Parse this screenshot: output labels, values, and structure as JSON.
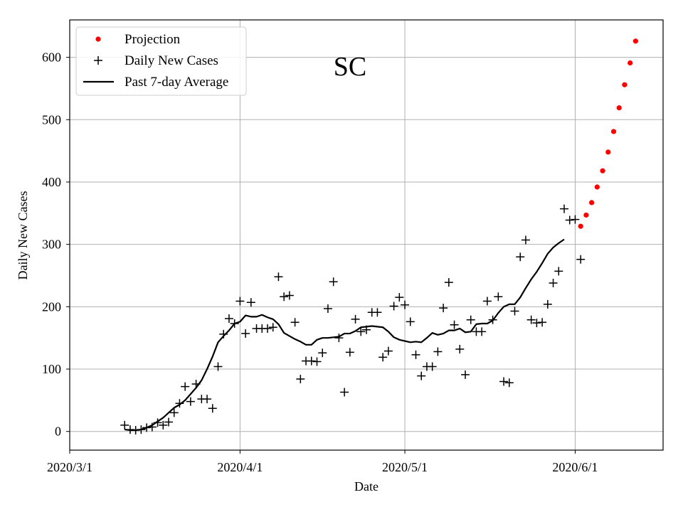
{
  "chart_data": {
    "type": "scatter",
    "title": "SC",
    "xlabel": "Date",
    "ylabel": "Daily New Cases",
    "x_axis": {
      "unit": "days since 2020-03-01",
      "range": [
        0,
        108
      ],
      "ticks": [
        {
          "day": 0,
          "label": "2020/3/1"
        },
        {
          "day": 31,
          "label": "2020/4/1"
        },
        {
          "day": 61,
          "label": "2020/5/1"
        },
        {
          "day": 92,
          "label": "2020/6/1"
        }
      ]
    },
    "y_axis": {
      "range": [
        -30,
        660
      ],
      "ticks": [
        0,
        100,
        200,
        300,
        400,
        500,
        600
      ]
    },
    "grid": true,
    "legend": {
      "position": "top-left",
      "entries": [
        {
          "label": "Projection",
          "marker": "dot",
          "color": "#ff0000"
        },
        {
          "label": "Daily New Cases",
          "marker": "plus",
          "color": "#000000"
        },
        {
          "label": "Past 7-day Average",
          "marker": "line",
          "color": "#000000"
        }
      ]
    },
    "series": [
      {
        "name": "Daily New Cases",
        "color": "#000000",
        "points": [
          [
            10,
            10
          ],
          [
            11,
            3
          ],
          [
            12,
            2
          ],
          [
            13,
            3
          ],
          [
            14,
            6
          ],
          [
            15,
            7
          ],
          [
            16,
            14
          ],
          [
            17,
            10
          ],
          [
            18,
            15
          ],
          [
            19,
            30
          ],
          [
            20,
            45
          ],
          [
            21,
            72
          ],
          [
            22,
            48
          ],
          [
            23,
            76
          ],
          [
            24,
            52
          ],
          [
            25,
            52
          ],
          [
            26,
            37
          ],
          [
            27,
            104
          ],
          [
            28,
            156
          ],
          [
            29,
            181
          ],
          [
            30,
            173
          ],
          [
            31,
            209
          ],
          [
            32,
            157
          ],
          [
            33,
            207
          ],
          [
            34,
            165
          ],
          [
            35,
            165
          ],
          [
            36,
            165
          ],
          [
            37,
            167
          ],
          [
            38,
            248
          ],
          [
            39,
            216
          ],
          [
            40,
            218
          ],
          [
            41,
            175
          ],
          [
            42,
            84
          ],
          [
            43,
            113
          ],
          [
            44,
            113
          ],
          [
            45,
            112
          ],
          [
            46,
            126
          ],
          [
            47,
            197
          ],
          [
            48,
            240
          ],
          [
            49,
            150
          ],
          [
            50,
            63
          ],
          [
            51,
            127
          ],
          [
            52,
            180
          ],
          [
            53,
            160
          ],
          [
            54,
            163
          ],
          [
            55,
            191
          ],
          [
            56,
            191
          ],
          [
            57,
            119
          ],
          [
            58,
            129
          ],
          [
            59,
            201
          ],
          [
            60,
            215
          ],
          [
            61,
            203
          ],
          [
            62,
            176
          ],
          [
            63,
            123
          ],
          [
            64,
            89
          ],
          [
            65,
            104
          ],
          [
            66,
            104
          ],
          [
            67,
            128
          ],
          [
            68,
            198
          ],
          [
            69,
            239
          ],
          [
            70,
            171
          ],
          [
            71,
            132
          ],
          [
            72,
            91
          ],
          [
            73,
            179
          ],
          [
            74,
            160
          ],
          [
            75,
            160
          ],
          [
            76,
            209
          ],
          [
            77,
            179
          ],
          [
            78,
            216
          ],
          [
            79,
            80
          ],
          [
            80,
            78
          ],
          [
            81,
            193
          ],
          [
            82,
            280
          ],
          [
            83,
            307
          ],
          [
            84,
            179
          ],
          [
            85,
            174
          ],
          [
            86,
            175
          ],
          [
            87,
            204
          ],
          [
            88,
            238
          ],
          [
            89,
            257
          ],
          [
            90,
            357
          ],
          [
            91,
            339
          ],
          [
            92,
            340
          ],
          [
            93,
            276
          ]
        ]
      },
      {
        "name": "Past 7-day Average",
        "color": "#000000",
        "points": [
          [
            10,
            3
          ],
          [
            11,
            2
          ],
          [
            12,
            2
          ],
          [
            13,
            3
          ],
          [
            14,
            6
          ],
          [
            15,
            10
          ],
          [
            16,
            16
          ],
          [
            17,
            22
          ],
          [
            18,
            30
          ],
          [
            19,
            38
          ],
          [
            20,
            43
          ],
          [
            21,
            50
          ],
          [
            22,
            60
          ],
          [
            23,
            70
          ],
          [
            24,
            82
          ],
          [
            25,
            100
          ],
          [
            26,
            120
          ],
          [
            27,
            143
          ],
          [
            28,
            153
          ],
          [
            29,
            162
          ],
          [
            30,
            173
          ],
          [
            31,
            176
          ],
          [
            32,
            186
          ],
          [
            33,
            184
          ],
          [
            34,
            184
          ],
          [
            35,
            187
          ],
          [
            36,
            183
          ],
          [
            37,
            180
          ],
          [
            38,
            172
          ],
          [
            39,
            158
          ],
          [
            40,
            153
          ],
          [
            41,
            148
          ],
          [
            42,
            144
          ],
          [
            43,
            139
          ],
          [
            44,
            139
          ],
          [
            45,
            147
          ],
          [
            46,
            150
          ],
          [
            47,
            150
          ],
          [
            48,
            151
          ],
          [
            49,
            152
          ],
          [
            50,
            157
          ],
          [
            51,
            157
          ],
          [
            52,
            161
          ],
          [
            53,
            167
          ],
          [
            54,
            168
          ],
          [
            55,
            169
          ],
          [
            56,
            168
          ],
          [
            57,
            167
          ],
          [
            58,
            160
          ],
          [
            59,
            151
          ],
          [
            60,
            147
          ],
          [
            61,
            145
          ],
          [
            62,
            143
          ],
          [
            63,
            144
          ],
          [
            64,
            143
          ],
          [
            65,
            150
          ],
          [
            66,
            158
          ],
          [
            67,
            155
          ],
          [
            68,
            157
          ],
          [
            69,
            162
          ],
          [
            70,
            162
          ],
          [
            71,
            165
          ],
          [
            72,
            159
          ],
          [
            73,
            160
          ],
          [
            74,
            172
          ],
          [
            75,
            173
          ],
          [
            76,
            173
          ],
          [
            77,
            178
          ],
          [
            78,
            190
          ],
          [
            79,
            200
          ],
          [
            80,
            204
          ],
          [
            81,
            204
          ],
          [
            82,
            215
          ],
          [
            83,
            230
          ],
          [
            84,
            244
          ],
          [
            85,
            256
          ],
          [
            86,
            270
          ],
          [
            87,
            285
          ],
          [
            88,
            295
          ],
          [
            89,
            302
          ],
          [
            90,
            308
          ]
        ]
      },
      {
        "name": "Projection",
        "color": "#ff0000",
        "points": [
          [
            93,
            329
          ],
          [
            94,
            347
          ],
          [
            95,
            367
          ],
          [
            96,
            392
          ],
          [
            97,
            418
          ],
          [
            98,
            448
          ],
          [
            99,
            481
          ],
          [
            100,
            519
          ],
          [
            101,
            556
          ],
          [
            102,
            591
          ],
          [
            103,
            626
          ]
        ]
      }
    ]
  }
}
